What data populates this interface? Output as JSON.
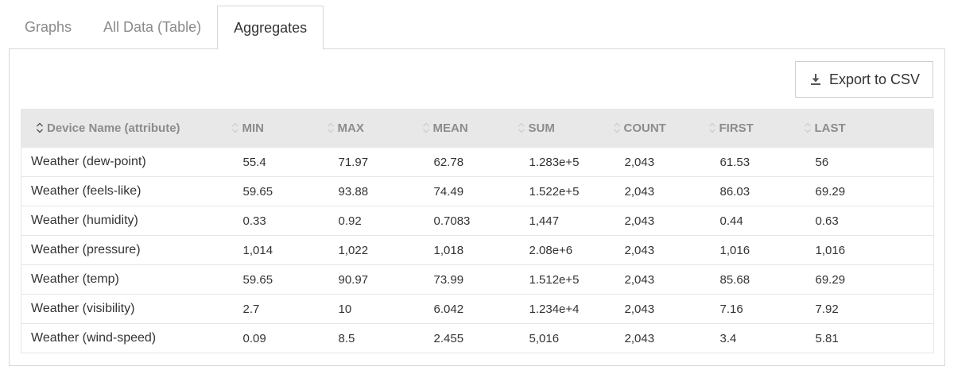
{
  "tabs": [
    {
      "label": "Graphs",
      "active": false
    },
    {
      "label": "All Data (Table)",
      "active": false
    },
    {
      "label": "Aggregates",
      "active": true
    }
  ],
  "toolbar": {
    "export_label": "Export to CSV",
    "export_icon": "download-icon"
  },
  "table": {
    "sort_icon": "sort-icon",
    "columns": [
      "Device Name (attribute)",
      "MIN",
      "MAX",
      "MEAN",
      "SUM",
      "COUNT",
      "FIRST",
      "LAST"
    ],
    "rows": [
      [
        "Weather (dew-point)",
        "55.4",
        "71.97",
        "62.78",
        "1.283e+5",
        "2,043",
        "61.53",
        "56"
      ],
      [
        "Weather (feels-like)",
        "59.65",
        "93.88",
        "74.49",
        "1.522e+5",
        "2,043",
        "86.03",
        "69.29"
      ],
      [
        "Weather (humidity)",
        "0.33",
        "0.92",
        "0.7083",
        "1,447",
        "2,043",
        "0.44",
        "0.63"
      ],
      [
        "Weather (pressure)",
        "1,014",
        "1,022",
        "1,018",
        "2.08e+6",
        "2,043",
        "1,016",
        "1,016"
      ],
      [
        "Weather (temp)",
        "59.65",
        "90.97",
        "73.99",
        "1.512e+5",
        "2,043",
        "85.68",
        "69.29"
      ],
      [
        "Weather (visibility)",
        "2.7",
        "10",
        "6.042",
        "1.234e+4",
        "2,043",
        "7.16",
        "7.92"
      ],
      [
        "Weather (wind-speed)",
        "0.09",
        "8.5",
        "2.455",
        "5,016",
        "2,043",
        "3.4",
        "5.81"
      ]
    ]
  },
  "colors": {
    "header_bg": "#e8e8e8",
    "header_text": "#8c8c8c",
    "border": "#d7d7d7",
    "inactive_tab": "#8a8a8a"
  }
}
